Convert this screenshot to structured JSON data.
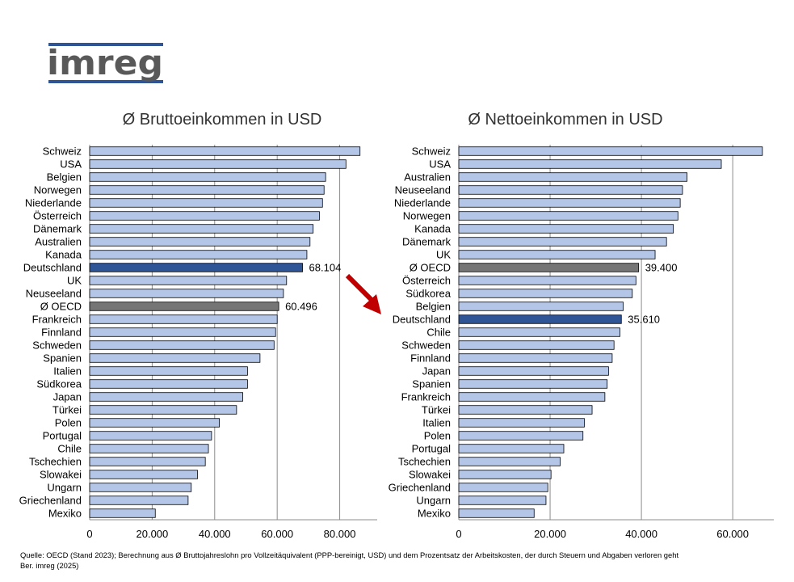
{
  "logo": {
    "text": "imreg"
  },
  "charts": [
    {
      "id": "left",
      "title": "Ø Bruttoeinkommen  in USD"
    },
    {
      "id": "right",
      "title": "Ø Nettoeinkommen  in USD"
    }
  ],
  "colors": {
    "bar": "#b4c6e7",
    "highlight": "#2f5597",
    "average": "#757575",
    "logo_text": "#595959",
    "logo_lines": "#2f5597"
  },
  "chart_data": [
    {
      "type": "bar",
      "orientation": "horizontal",
      "title": "Ø Bruttoeinkommen  in USD",
      "xlim": [
        0,
        92000
      ],
      "ticks": [
        "0",
        "20.000",
        "40.000",
        "60.000",
        "80.000"
      ],
      "tick_values": [
        0,
        20000,
        40000,
        60000,
        80000
      ],
      "grid": true,
      "categories": [
        "Schweiz",
        "USA",
        "Belgien",
        "Norwegen",
        "Niederlande",
        "Österreich",
        "Dänemark",
        "Australien",
        "Kanada",
        "Deutschland",
        "UK",
        "Neuseeland",
        "Ø OECD",
        "Frankreich",
        "Finnland",
        "Schweden",
        "Spanien",
        "Italien",
        "Südkorea",
        "Japan",
        "Türkei",
        "Polen",
        "Portugal",
        "Chile",
        "Tschechien",
        "Slowakei",
        "Ungarn",
        "Griechenland",
        "Mexiko"
      ],
      "values": [
        86500,
        82000,
        75500,
        75000,
        74500,
        73500,
        71500,
        70500,
        69500,
        68104,
        63000,
        62000,
        60496,
        60000,
        59500,
        59000,
        54500,
        50500,
        50500,
        49000,
        47000,
        41500,
        39000,
        38000,
        37000,
        34500,
        32500,
        31500,
        21000
      ],
      "highlight": "Deutschland",
      "average": "Ø OECD",
      "data_labels": {
        "Deutschland": "68.104",
        "Ø OECD": "60.496"
      }
    },
    {
      "type": "bar",
      "orientation": "horizontal",
      "title": "Ø Nettoeinkommen  in USD",
      "xlim": [
        0,
        69000
      ],
      "ticks": [
        "0",
        "20.000",
        "40.000",
        "60.000"
      ],
      "tick_values": [
        0,
        20000,
        40000,
        60000
      ],
      "grid": true,
      "categories": [
        "Schweiz",
        "USA",
        "Australien",
        "Neuseeland",
        "Niederlande",
        "Norwegen",
        "Kanada",
        "Dänemark",
        "UK",
        "Ø OECD",
        "Österreich",
        "Südkorea",
        "Belgien",
        "Deutschland",
        "Chile",
        "Schweden",
        "Finnland",
        "Japan",
        "Spanien",
        "Frankreich",
        "Türkei",
        "Italien",
        "Polen",
        "Portugal",
        "Tschechien",
        "Slowakei",
        "Griechenland",
        "Ungarn",
        "Mexiko"
      ],
      "values": [
        66500,
        57500,
        50000,
        49000,
        48500,
        48000,
        47000,
        45500,
        43000,
        39400,
        38800,
        38000,
        36000,
        35610,
        35300,
        34000,
        33600,
        32800,
        32500,
        32000,
        29200,
        27500,
        27200,
        23000,
        22200,
        20200,
        19500,
        19100,
        16500
      ],
      "highlight": "Deutschland",
      "average": "Ø OECD",
      "data_labels": {
        "Ø OECD": "39.400",
        "Deutschland": "35.610"
      }
    }
  ],
  "footer": {
    "line1": "Quelle:  OECD  (Stand 2023); Berechnung aus Ø  Bruttojahreslohn pro Vollzeitäquivalent (PPP-bereinigt,  USD) und dem Prozentsatz der Arbeitskosten, der durch Steuern und Abgaben verloren geht",
    "line2": "Ber. imreg (2025)"
  }
}
